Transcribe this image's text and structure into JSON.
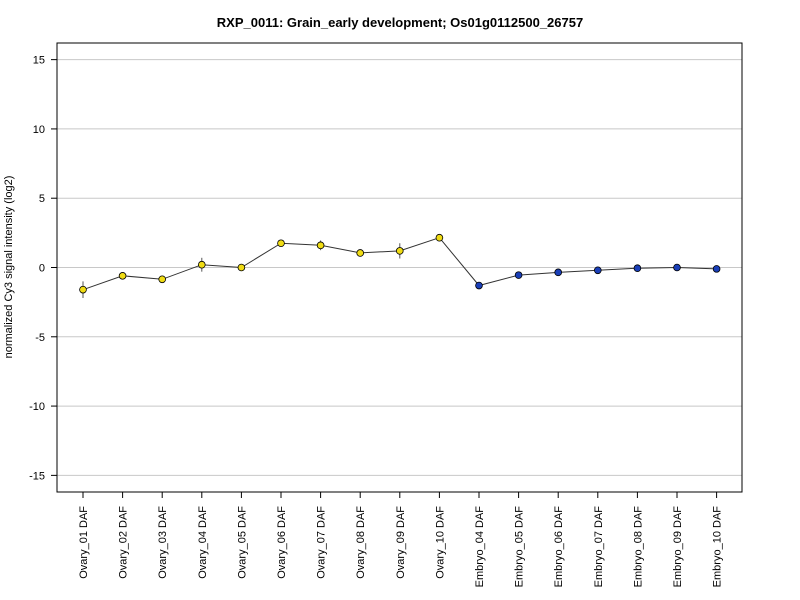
{
  "chart_data": {
    "type": "line",
    "title": "RXP_0011: Grain_early development; Os01g0112500_26757",
    "xlabel": "",
    "ylabel": "normalized Cy3 signal intensity (log2)",
    "ylim": [
      -16.2,
      16.2
    ],
    "yticks": [
      -15,
      -10,
      -5,
      0,
      5,
      10,
      15
    ],
    "grid": true,
    "categories": [
      "Ovary_01 DAF",
      "Ovary_02 DAF",
      "Ovary_03 DAF",
      "Ovary_04 DAF",
      "Ovary_05 DAF",
      "Ovary_06 DAF",
      "Ovary_07 DAF",
      "Ovary_08 DAF",
      "Ovary_09 DAF",
      "Ovary_10 DAF",
      "Embryo_04 DAF",
      "Embryo_05 DAF",
      "Embryo_06 DAF",
      "Embryo_07 DAF",
      "Embryo_08 DAF",
      "Embryo_09 DAF",
      "Embryo_10 DAF"
    ],
    "values": [
      -1.6,
      -0.6,
      -0.85,
      0.2,
      0.0,
      1.75,
      1.6,
      1.05,
      1.2,
      2.15,
      -1.3,
      -0.55,
      -0.35,
      -0.2,
      -0.05,
      0.0,
      -0.1
    ],
    "errors": [
      0.6,
      0.1,
      0.15,
      0.5,
      0.1,
      0.2,
      0.35,
      0.2,
      0.55,
      0.2,
      0.15,
      0.15,
      0.1,
      0.1,
      0.1,
      0.1,
      0.1
    ],
    "point_colors": [
      "#f0dc14",
      "#f0dc14",
      "#f0dc14",
      "#f0dc14",
      "#f0dc14",
      "#f0dc14",
      "#f0dc14",
      "#f0dc14",
      "#f0dc14",
      "#f0dc14",
      "#1a3fb8",
      "#1a3fb8",
      "#1a3fb8",
      "#1a3fb8",
      "#1a3fb8",
      "#1a3fb8",
      "#1a3fb8"
    ],
    "line_color": "#333333",
    "grid_color": "#c8c8c8"
  }
}
